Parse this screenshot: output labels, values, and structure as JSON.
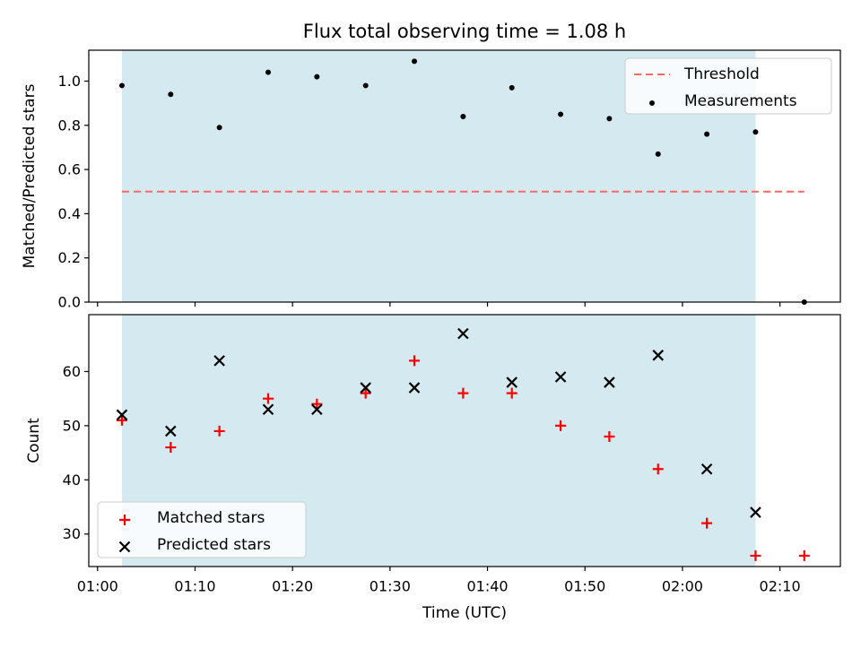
{
  "chart_data": {
    "type": "scatter",
    "title": "Flux total observing time = 1.08 h",
    "xlabel": "Time (UTC)",
    "x_ticks": [
      "01:00",
      "01:10",
      "01:20",
      "01:30",
      "01:40",
      "01:50",
      "02:00",
      "02:10"
    ],
    "shaded_span": [
      "01:02:30",
      "02:07:30"
    ],
    "panels": [
      {
        "ylabel": "Matched/Predicted stars",
        "ylim": [
          0,
          1.14
        ],
        "y_ticks": [
          "0.0",
          "0.2",
          "0.4",
          "0.6",
          "0.8",
          "1.0"
        ],
        "legend": "top-right",
        "series": [
          {
            "name": "Threshold",
            "kind": "dashed-line",
            "color": "#ff6666",
            "x": [
              "01:02:30",
              "02:12:30"
            ],
            "y": [
              0.5,
              0.5
            ]
          },
          {
            "name": "Measurements",
            "kind": "dot",
            "color": "#000000",
            "x": [
              "01:02:30",
              "01:07:30",
              "01:12:30",
              "01:17:30",
              "01:22:30",
              "01:27:30",
              "01:32:30",
              "01:37:30",
              "01:42:30",
              "01:47:30",
              "01:52:30",
              "01:57:30",
              "02:02:30",
              "02:07:30",
              "02:12:30"
            ],
            "y": [
              0.98,
              0.94,
              0.79,
              1.04,
              1.02,
              0.98,
              1.09,
              0.84,
              0.97,
              0.85,
              0.83,
              0.67,
              0.76,
              0.77,
              0.0
            ]
          }
        ]
      },
      {
        "ylabel": "Count",
        "ylim": [
          24,
          70.5
        ],
        "y_ticks": [
          "30",
          "40",
          "50",
          "60"
        ],
        "legend": "bottom-left",
        "series": [
          {
            "name": "Matched stars",
            "kind": "plus",
            "color": "#ff0000",
            "x": [
              "01:02:30",
              "01:07:30",
              "01:12:30",
              "01:17:30",
              "01:22:30",
              "01:27:30",
              "01:32:30",
              "01:37:30",
              "01:42:30",
              "01:47:30",
              "01:52:30",
              "01:57:30",
              "02:02:30",
              "02:07:30",
              "02:12:30"
            ],
            "y": [
              51,
              46,
              49,
              55,
              54,
              56,
              62,
              56,
              56,
              50,
              48,
              42,
              32,
              26,
              26
            ]
          },
          {
            "name": "Predicted stars",
            "kind": "x",
            "color": "#000000",
            "x": [
              "01:02:30",
              "01:07:30",
              "01:12:30",
              "01:17:30",
              "01:22:30",
              "01:27:30",
              "01:32:30",
              "01:37:30",
              "01:42:30",
              "01:47:30",
              "01:52:30",
              "01:57:30",
              "02:02:30",
              "02:07:30"
            ],
            "y": [
              52,
              49,
              62,
              53,
              53,
              57,
              57,
              67,
              58,
              59,
              58,
              63,
              42,
              34
            ]
          }
        ]
      }
    ],
    "colors": {
      "shade": "#d4eaf0",
      "axis": "#000000"
    }
  }
}
